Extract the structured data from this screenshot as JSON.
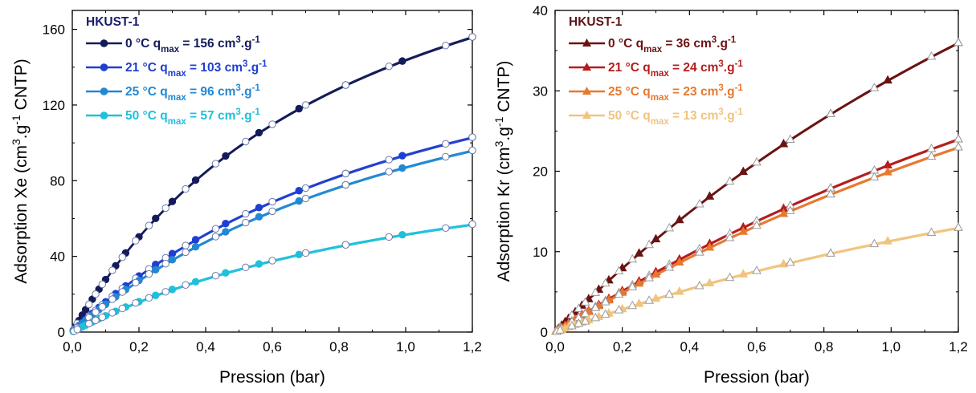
{
  "chart_data": [
    {
      "type": "line",
      "title": "HKUST-1",
      "title_color": "#1a1a6e",
      "xlabel": "Pression (bar)",
      "ylabel": "Adsorption Xe (cm³.g⁻¹ CNTP)",
      "ylabel_parts": [
        "Adsorption Xe (cm",
        "3",
        ".g",
        "-1",
        " CNTP)"
      ],
      "xlim": [
        0,
        1.2
      ],
      "ylim": [
        0,
        170
      ],
      "xticks": [
        0,
        0.2,
        0.4,
        0.6,
        0.8,
        1.0,
        1.2
      ],
      "xtick_labels": [
        "0,0",
        "0,2",
        "0,4",
        "0,6",
        "0,8",
        "1,0",
        "1,2"
      ],
      "yticks": [
        0,
        40,
        80,
        120,
        160
      ],
      "ytick_labels": [
        "0",
        "40",
        "80",
        "120",
        "160"
      ],
      "grid": false,
      "legend_position": "top-left",
      "marker": "circle",
      "series": [
        {
          "name": "0 °C q",
          "name_parts": [
            "0 °C q",
            "max",
            " = 156 cm",
            "3",
            ".g",
            "-1"
          ],
          "color": "#141b5a",
          "qmax": 156,
          "K": 1.15
        },
        {
          "name": "21 °C q",
          "name_parts": [
            "21 °C q",
            "max",
            " = 103 cm",
            "3",
            ".g",
            "-1"
          ],
          "color": "#1f3fd1",
          "qmax": 103,
          "K": 0.85
        },
        {
          "name": "25 °C q",
          "name_parts": [
            "25 °C q",
            "max",
            " = 96 cm",
            "3",
            ".g",
            "-1"
          ],
          "color": "#2288d4",
          "qmax": 96,
          "K": 0.82
        },
        {
          "name": "50 °C q",
          "name_parts": [
            "50 °C q",
            "max",
            " = 57 cm",
            "3",
            ".g",
            "-1"
          ],
          "color": "#1fc0dc",
          "qmax": 57,
          "K": 0.8
        }
      ]
    },
    {
      "type": "line",
      "title": "HKUST-1",
      "title_color": "#5a1515",
      "xlabel": "Pression (bar)",
      "ylabel": "Adsorption Kr (cm³.g⁻¹ CNTP)",
      "ylabel_parts": [
        "Adsorption Kr (cm",
        "3",
        ".g",
        "-1",
        " CNTP)"
      ],
      "xlim": [
        0,
        1.2
      ],
      "ylim": [
        0,
        40
      ],
      "xticks": [
        0,
        0.2,
        0.4,
        0.6,
        0.8,
        1.0,
        1.2
      ],
      "xtick_labels": [
        "0,0",
        "0,2",
        "0,4",
        "0,6",
        "0,8",
        "1,0",
        "1,2"
      ],
      "yticks": [
        0,
        10,
        20,
        30,
        40
      ],
      "ytick_labels": [
        "0",
        "10",
        "20",
        "30",
        "40"
      ],
      "grid": false,
      "legend_position": "top-left",
      "marker": "triangle",
      "series": [
        {
          "name": "0 °C q",
          "name_parts": [
            "0 °C q",
            "max",
            " = 36 cm",
            "3",
            ".g",
            "-1"
          ],
          "color": "#6b1212",
          "qmax": 36,
          "K": 0.35
        },
        {
          "name": "21 °C q",
          "name_parts": [
            "21 °C q",
            "max",
            " = 24 cm",
            "3",
            ".g",
            "-1"
          ],
          "color": "#b51c1c",
          "qmax": 24,
          "K": 0.3
        },
        {
          "name": "25 °C q",
          "name_parts": [
            "25 °C q",
            "max",
            " = 23 cm",
            "3",
            ".g",
            "-1"
          ],
          "color": "#e8782e",
          "qmax": 23,
          "K": 0.3
        },
        {
          "name": "50 °C q",
          "name_parts": [
            "50 °C q",
            "max",
            " = 13 cm",
            "3",
            ".g",
            "-1"
          ],
          "color": "#f0c47e",
          "qmax": 13,
          "K": 0.35
        }
      ]
    }
  ]
}
